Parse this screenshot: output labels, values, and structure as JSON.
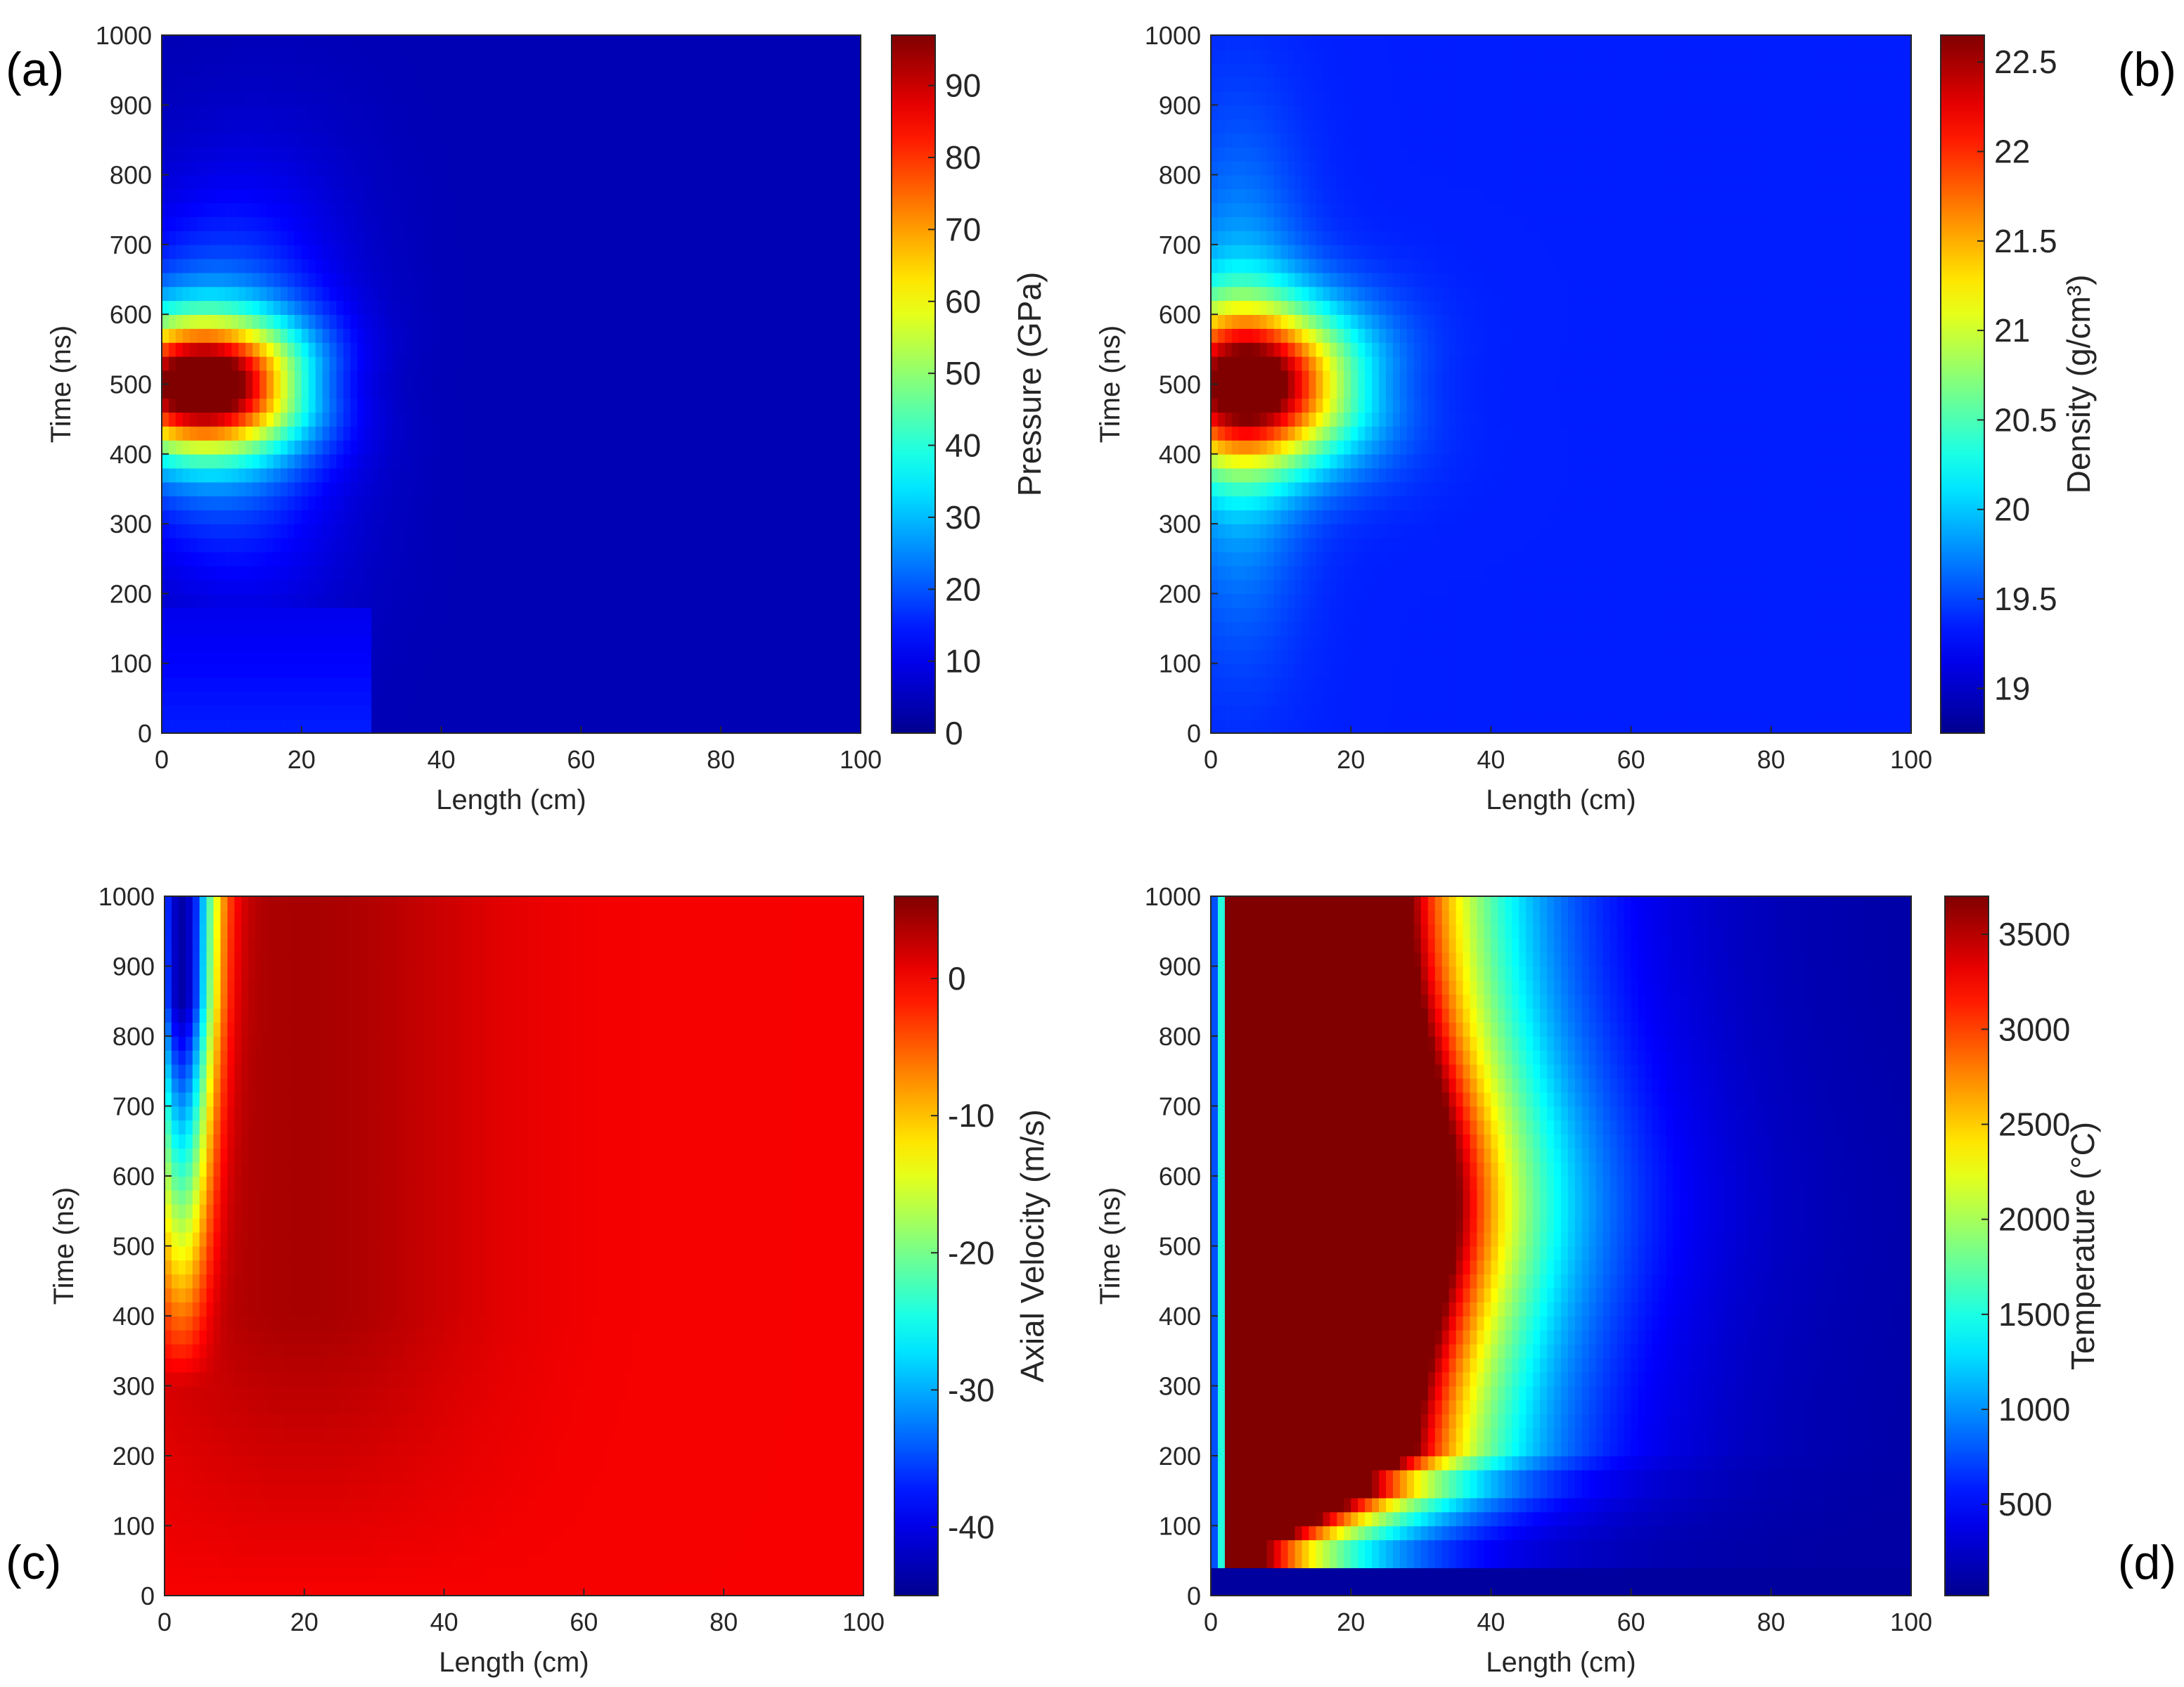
{
  "figure": {
    "panels": [
      {
        "id": "a",
        "tag": "(a)",
        "tag_side": "left",
        "tag_vpos": "top"
      },
      {
        "id": "b",
        "tag": "(b)",
        "tag_side": "right",
        "tag_vpos": "top"
      },
      {
        "id": "c",
        "tag": "(c)",
        "tag_side": "left",
        "tag_vpos": "bottom"
      },
      {
        "id": "d",
        "tag": "(d)",
        "tag_side": "right",
        "tag_vpos": "bottom"
      }
    ]
  },
  "colors": {
    "jet": [
      "#00008f",
      "#0000ff",
      "#00ffff",
      "#ffff00",
      "#ff0000",
      "#800000"
    ],
    "axis": "#262626"
  },
  "chart_data": [
    {
      "panel": "a",
      "type": "heatmap",
      "title": "",
      "xlabel": "Length (cm)",
      "ylabel": "Time (ns)",
      "colorbar_label": "Pressure (GPa)",
      "xlim": [
        0,
        100
      ],
      "ylim": [
        0,
        1000
      ],
      "x_ticks": [
        0,
        20,
        40,
        60,
        80,
        100
      ],
      "y_ticks": [
        0,
        100,
        200,
        300,
        400,
        500,
        600,
        700,
        800,
        900,
        1000
      ],
      "clim": [
        0,
        97
      ],
      "colorbar_ticks": [
        "0",
        "10",
        "20",
        "30",
        "40",
        "50",
        "60",
        "70",
        "80",
        "90"
      ],
      "colorbar_tick_values": [
        0,
        10,
        20,
        30,
        40,
        50,
        60,
        70,
        80,
        90
      ],
      "field": {
        "kind": "pressure",
        "peak_value": 97,
        "peak_length": 7,
        "peak_time": 500,
        "background": 2
      }
    },
    {
      "panel": "b",
      "type": "heatmap",
      "title": "",
      "xlabel": "Length (cm)",
      "ylabel": "Time (ns)",
      "colorbar_label": "Density (g/cm³)",
      "xlim": [
        0,
        100
      ],
      "ylim": [
        0,
        1000
      ],
      "x_ticks": [
        0,
        20,
        40,
        60,
        80,
        100
      ],
      "y_ticks": [
        0,
        100,
        200,
        300,
        400,
        500,
        600,
        700,
        800,
        900,
        1000
      ],
      "clim": [
        18.75,
        22.65
      ],
      "colorbar_ticks": [
        "19",
        "19.5",
        "20",
        "20.5",
        "21",
        "21.5",
        "22",
        "22.5"
      ],
      "colorbar_tick_values": [
        19,
        19.5,
        20,
        20.5,
        21,
        21.5,
        22,
        22.5
      ],
      "field": {
        "kind": "density",
        "peak_value": 22.6,
        "peak_length": 6,
        "peak_time": 500,
        "background": 19.3
      }
    },
    {
      "panel": "c",
      "type": "heatmap",
      "title": "",
      "xlabel": "Length (cm)",
      "ylabel": "Time (ns)",
      "colorbar_label": "Axial Velocity (m/s)",
      "xlim": [
        0,
        100
      ],
      "ylim": [
        0,
        1000
      ],
      "x_ticks": [
        0,
        20,
        40,
        60,
        80,
        100
      ],
      "y_ticks": [
        0,
        100,
        200,
        300,
        400,
        500,
        600,
        700,
        800,
        900,
        1000
      ],
      "clim": [
        -45,
        6
      ],
      "colorbar_ticks": [
        "-40",
        "-30",
        "-20",
        "-10",
        "0"
      ],
      "colorbar_tick_values": [
        -40,
        -30,
        -20,
        -10,
        0
      ],
      "field": {
        "kind": "velocity",
        "min_value": -45,
        "min_length": 2,
        "min_time": 850,
        "background": 0
      }
    },
    {
      "panel": "d",
      "type": "heatmap",
      "title": "",
      "xlabel": "Length (cm)",
      "ylabel": "Time (ns)",
      "colorbar_label": "Temperature (°C)",
      "xlim": [
        0,
        100
      ],
      "ylim": [
        0,
        1000
      ],
      "x_ticks": [
        0,
        20,
        40,
        60,
        80,
        100
      ],
      "y_ticks": [
        0,
        100,
        200,
        300,
        400,
        500,
        600,
        700,
        800,
        900,
        1000
      ],
      "clim": [
        20,
        3700
      ],
      "colorbar_ticks": [
        "500",
        "1000",
        "1500",
        "2000",
        "2500",
        "3000",
        "3500"
      ],
      "colorbar_tick_values": [
        500,
        1000,
        1500,
        2000,
        2500,
        3000,
        3500
      ],
      "field": {
        "kind": "temperature",
        "max_value": 3700,
        "hot_zone_length": [
          3,
          28
        ],
        "background": 20
      }
    }
  ]
}
